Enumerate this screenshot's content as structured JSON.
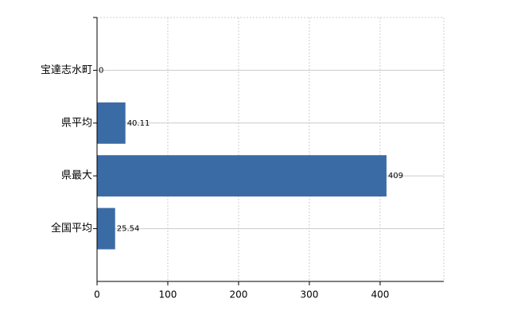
{
  "chart_data": {
    "type": "hbar",
    "categories": [
      "宝達志水町",
      "県平均",
      "県最大",
      "全国平均"
    ],
    "values": [
      0,
      40.11,
      409,
      25.54
    ],
    "color": "#3a6ba5",
    "xlim": [
      0,
      490
    ],
    "xticks": [
      0,
      100,
      200,
      300,
      400
    ],
    "grid": true
  }
}
